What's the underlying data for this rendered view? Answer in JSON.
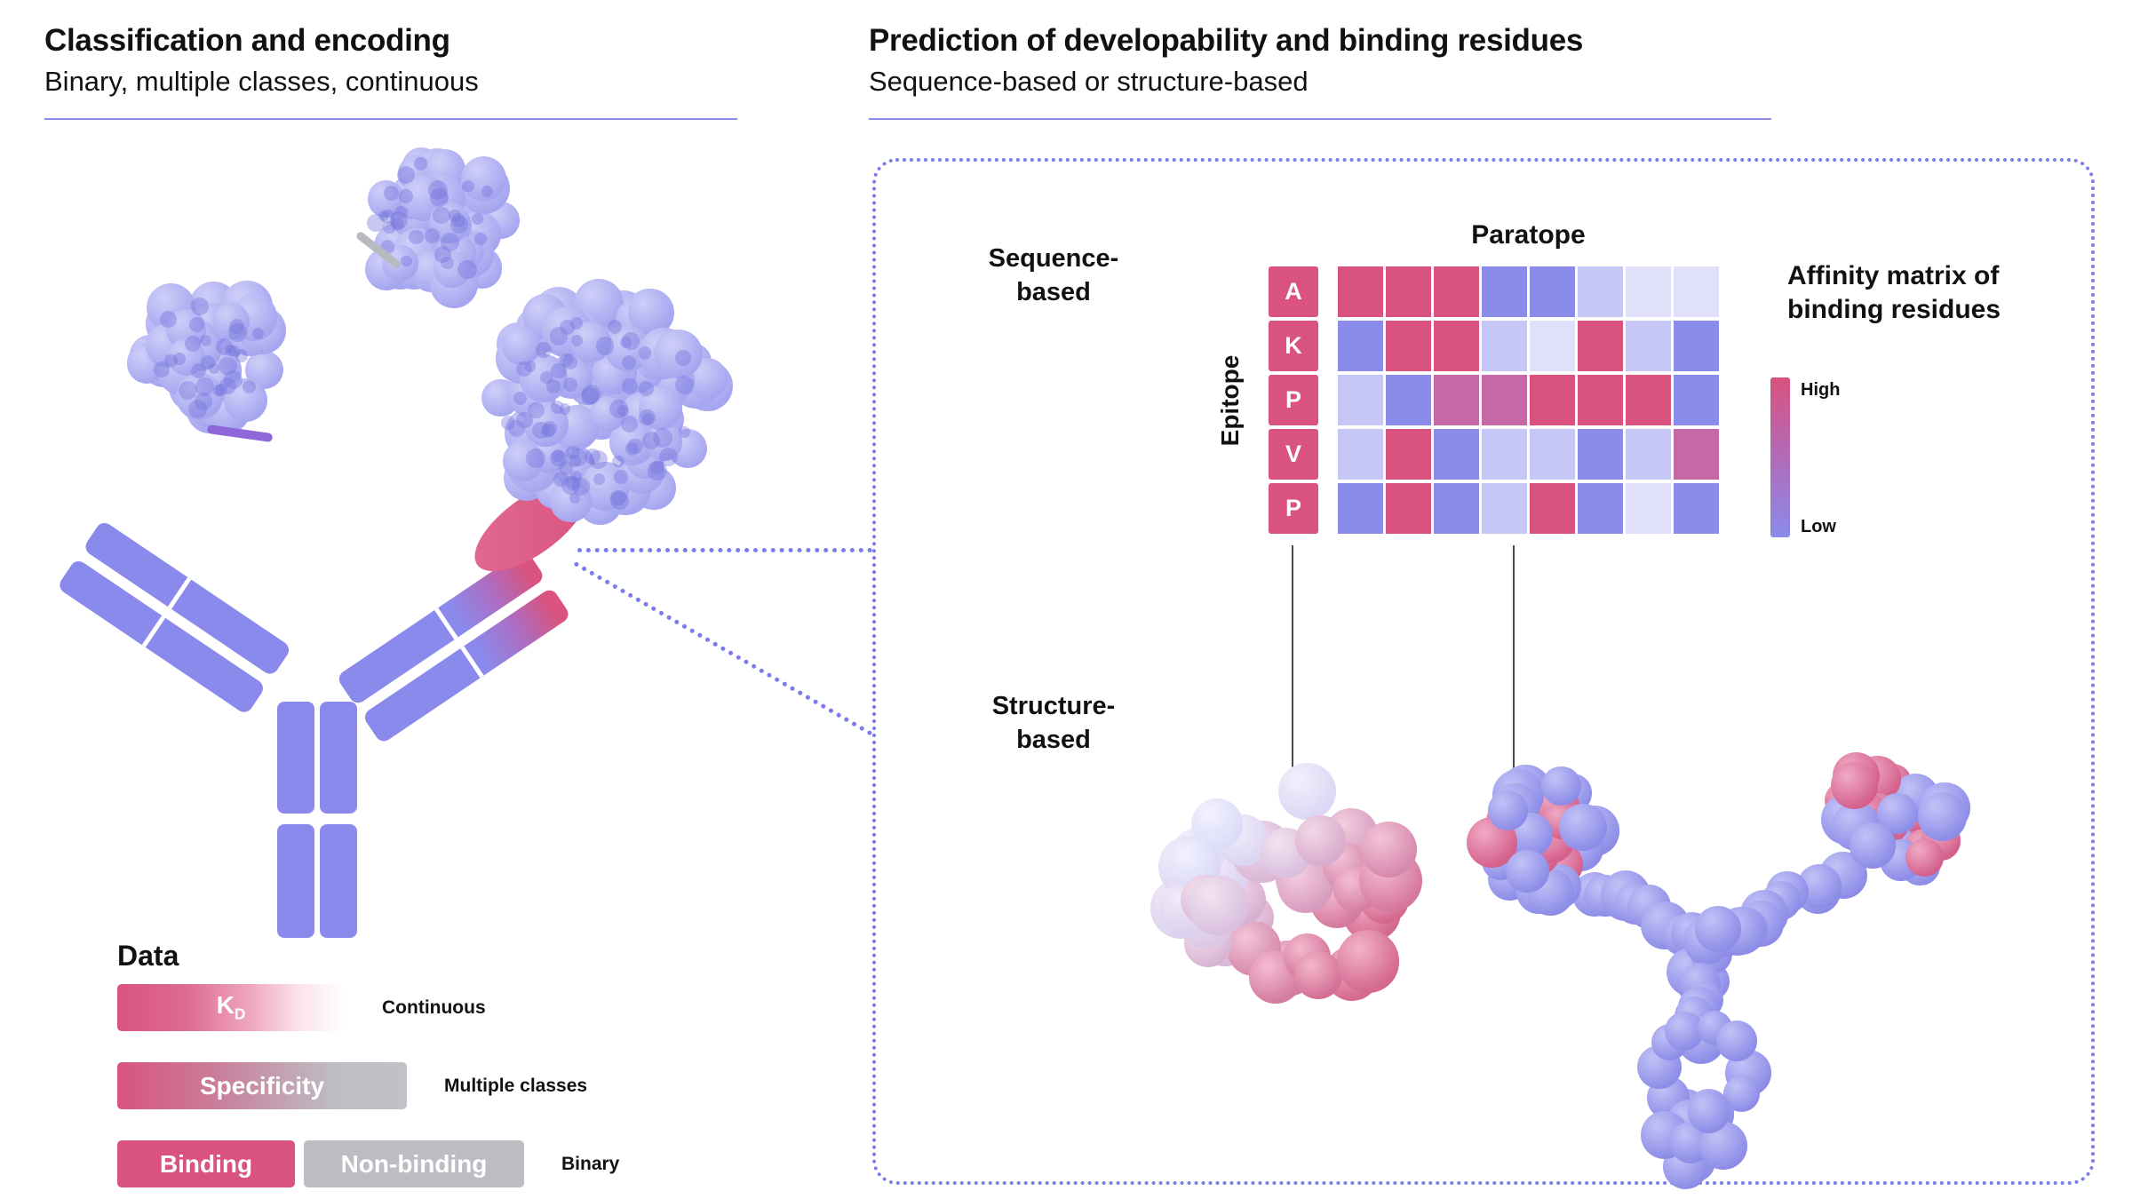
{
  "colors": {
    "accent": "#7b7bf0",
    "antibody": "#8a8aec",
    "pink": "#d9537e",
    "gray": "#bcbcc2",
    "violet_mark": "#8e68d8",
    "antigen_base": "#a6a6f0",
    "antigen_hi": "#cfcff9",
    "sphere_purple": "#8d8de8",
    "sphere_purple_hi": "#c2c2f7",
    "sphere_pink": "#d4608c",
    "sphere_pink_hi": "#f0aac4",
    "epitope_pale": "#dcdcf8",
    "epitope_pale_hi": "#f2f2fe",
    "epitope_pink": "#d4688f",
    "epitope_pink_hi": "#f3b3c9",
    "connector": "#4a4a4a"
  },
  "left_panel": {
    "title": "Classification and encoding",
    "subtitle": "Binary, multiple classes, continuous"
  },
  "right_panel": {
    "title": "Prediction of developability and binding residues",
    "subtitle": "Sequence-based or structure-based",
    "sequence_label": {
      "line1": "Sequence-",
      "line2": "based"
    },
    "structure_label": {
      "line1": "Structure-",
      "line2": "based"
    }
  },
  "heatmap": {
    "title": "Paratope",
    "row_axis_label": "Epitope",
    "row_labels": [
      "A",
      "K",
      "P",
      "V",
      "P"
    ],
    "legend": {
      "title_line1": "Affinity matrix of",
      "title_line2": "binding residues",
      "high": "High",
      "low": "Low"
    },
    "palette": {
      "pink": "#d9537e",
      "mauve": "#c468a6",
      "purple": "#8b8bea",
      "light": "#c7c7f5",
      "pale": "#e0e0fa"
    },
    "cells": [
      [
        "pink",
        "pink",
        "pink",
        "purple",
        "purple",
        "light",
        "pale",
        "pale"
      ],
      [
        "purple",
        "pink",
        "pink",
        "light",
        "pale",
        "pink",
        "light",
        "purple"
      ],
      [
        "light",
        "purple",
        "mauve",
        "mauve",
        "pink",
        "pink",
        "pink",
        "purple"
      ],
      [
        "light",
        "pink",
        "purple",
        "light",
        "light",
        "purple",
        "light",
        "mauve"
      ],
      [
        "purple",
        "pink",
        "purple",
        "light",
        "pink",
        "purple",
        "pale",
        "purple"
      ]
    ]
  },
  "data_legend": {
    "heading": "Data",
    "kd": {
      "main": "K",
      "sub": "D",
      "note": "Continuous"
    },
    "specificity": {
      "label": "Specificity",
      "note": "Multiple classes"
    },
    "binary": {
      "binding": "Binding",
      "non_binding": "Non-binding",
      "note": "Binary"
    }
  }
}
